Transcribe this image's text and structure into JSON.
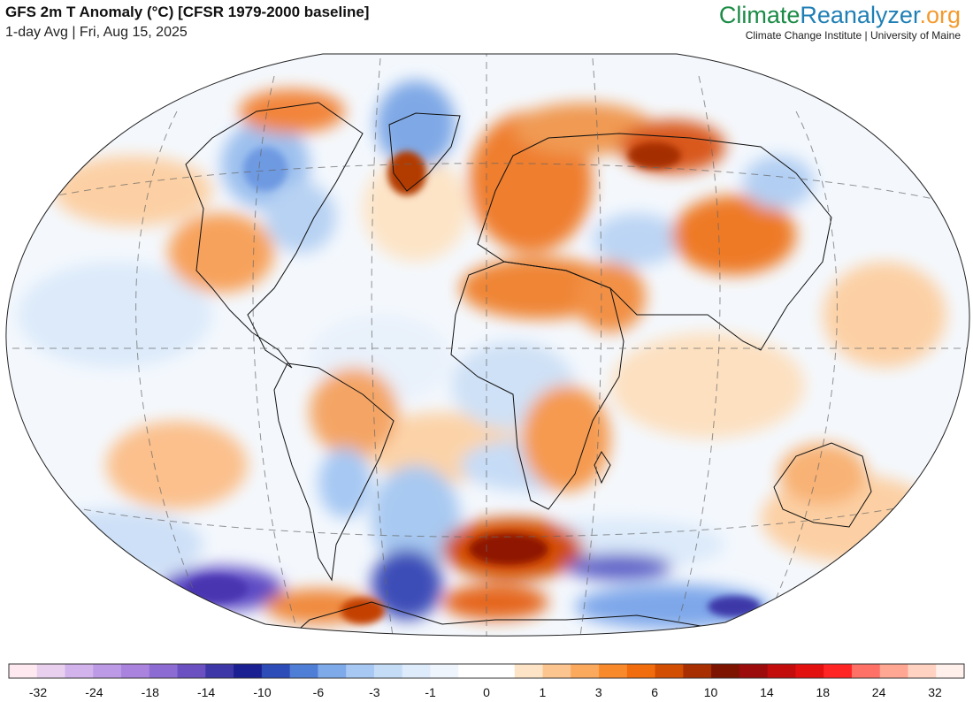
{
  "header": {
    "title": "GFS 2m T Anomaly (°C) [CFSR 1979-2000 baseline]",
    "subtitle": "1-day Avg | Fri, Aug 15, 2025"
  },
  "brand": {
    "logo_part1": "Climate",
    "logo_part2": "Reanalyzer",
    "logo_part3": ".org",
    "tagline": "Climate Change Institute | University of Maine",
    "colors": {
      "climate": "#1b8b46",
      "reanalyzer": "#1f7fb5",
      "org": "#f39a2d"
    }
  },
  "map": {
    "projection": "winkel-tripel",
    "variable": "2m temperature anomaly",
    "baseline": "CFSR 1979-2000",
    "grid": "dashed meridians and parallels",
    "warm_regions": [
      "Europe",
      "North Africa",
      "Middle East",
      "Central Asia",
      "Eastern Siberia",
      "Southern Ocean (south of Africa)",
      "Western Antarctica coast",
      "Australia"
    ],
    "cool_regions": [
      "Central Canada",
      "Greenland",
      "East Antarctica",
      "Southern South America",
      "South Pacific near Antarctica"
    ]
  },
  "colorbar": {
    "labels": [
      "-32",
      "-24",
      "-18",
      "-14",
      "-10",
      "-6",
      "-3",
      "-1",
      "0",
      "1",
      "3",
      "6",
      "10",
      "14",
      "18",
      "24",
      "32"
    ],
    "colors": [
      "#fde9ef",
      "#e8d0ee",
      "#d2b3ec",
      "#bc9ae6",
      "#a983de",
      "#8c6cd2",
      "#6a50c0",
      "#3d37a8",
      "#1a1f91",
      "#2d4cb8",
      "#4f7ed6",
      "#7eaaea",
      "#a6c8f3",
      "#c5dcf7",
      "#deebfb",
      "#eef5fd",
      "#ffffff",
      "#ffffff",
      "#fde4c6",
      "#fcc58f",
      "#fba95c",
      "#f98a2b",
      "#f06c0c",
      "#d24e03",
      "#a82f02",
      "#7c1400",
      "#9c0c0c",
      "#c30d0d",
      "#e31010",
      "#ff2525",
      "#ff7166",
      "#ffa793",
      "#ffd2c2",
      "#fff0ec"
    ]
  }
}
